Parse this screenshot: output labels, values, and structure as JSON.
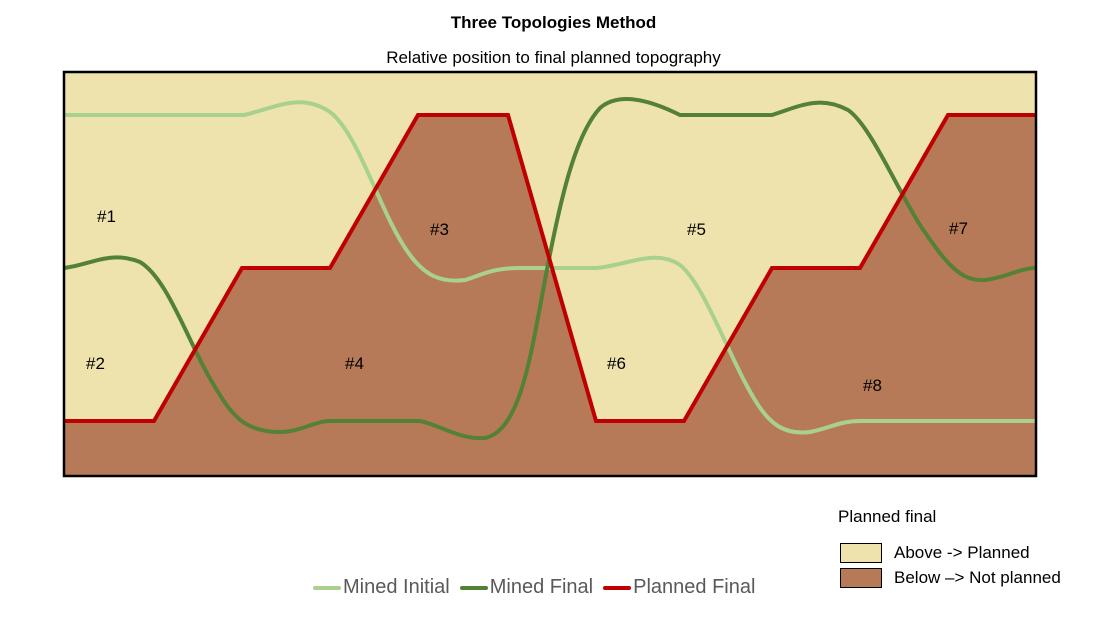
{
  "title": "Three Topologies Method",
  "subtitle": "Relative position to final planned topography",
  "colors": {
    "above_fill": "#EFE3AD",
    "below_fill": "#B77A58",
    "mined_initial": "#A9D18E",
    "mined_final": "#538135",
    "planned_final": "#C00000"
  },
  "regions": [
    "#1",
    "#2",
    "#3",
    "#4",
    "#5",
    "#6",
    "#7",
    "#8"
  ],
  "legend_lines": {
    "mined_initial": "Mined Initial",
    "mined_final": "Mined Final",
    "planned_final": "Planned Final"
  },
  "legend_fill": {
    "title": "Planned final",
    "above": "Above -> Planned",
    "below": "Below –> Not planned"
  }
}
